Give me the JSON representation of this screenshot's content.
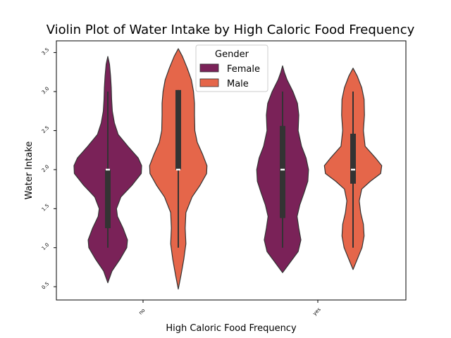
{
  "chart_data": {
    "type": "violin",
    "title": "Violin Plot of Water Intake by High Caloric Food Frequency",
    "xlabel": "High Caloric Food Frequency",
    "ylabel": "Water Intake",
    "categories": [
      "no",
      "yes"
    ],
    "ylim": [
      0.33,
      3.65
    ],
    "yticks": [
      "0.5",
      "1.0",
      "1.5",
      "2.0",
      "2.5",
      "3.0",
      "3.5"
    ],
    "legend": {
      "title": "Gender",
      "position": "top-center",
      "entries": [
        "Female",
        "Male"
      ]
    },
    "series": [
      {
        "name": "Female",
        "color": "#7a2258",
        "violins": [
          {
            "category": "no",
            "min": 1.0,
            "q1": 1.25,
            "median": 2.0,
            "q3": 2.0,
            "max": 3.0,
            "kde_min": 0.55,
            "kde_max": 3.45,
            "profile": [
              [
                0.55,
                0.0
              ],
              [
                0.7,
                0.12
              ],
              [
                0.85,
                0.35
              ],
              [
                1.0,
                0.55
              ],
              [
                1.1,
                0.57
              ],
              [
                1.25,
                0.44
              ],
              [
                1.4,
                0.28
              ],
              [
                1.5,
                0.25
              ],
              [
                1.65,
                0.38
              ],
              [
                1.8,
                0.7
              ],
              [
                1.95,
                0.97
              ],
              [
                2.05,
                0.98
              ],
              [
                2.15,
                0.88
              ],
              [
                2.3,
                0.58
              ],
              [
                2.45,
                0.3
              ],
              [
                2.6,
                0.19
              ],
              [
                2.75,
                0.13
              ],
              [
                2.9,
                0.11
              ],
              [
                3.05,
                0.1
              ],
              [
                3.2,
                0.08
              ],
              [
                3.35,
                0.05
              ],
              [
                3.45,
                0.0
              ]
            ]
          },
          {
            "category": "yes",
            "min": 1.0,
            "q1": 1.38,
            "median": 2.0,
            "q3": 2.56,
            "max": 3.0,
            "kde_min": 0.68,
            "kde_max": 3.33,
            "profile": [
              [
                0.68,
                0.0
              ],
              [
                0.8,
                0.2
              ],
              [
                0.95,
                0.45
              ],
              [
                1.1,
                0.53
              ],
              [
                1.25,
                0.47
              ],
              [
                1.4,
                0.42
              ],
              [
                1.55,
                0.5
              ],
              [
                1.7,
                0.62
              ],
              [
                1.85,
                0.73
              ],
              [
                2.0,
                0.75
              ],
              [
                2.15,
                0.68
              ],
              [
                2.3,
                0.55
              ],
              [
                2.5,
                0.45
              ],
              [
                2.7,
                0.47
              ],
              [
                2.85,
                0.43
              ],
              [
                3.0,
                0.3
              ],
              [
                3.15,
                0.13
              ],
              [
                3.25,
                0.05
              ],
              [
                3.33,
                0.0
              ]
            ]
          }
        ]
      },
      {
        "name": "Male",
        "color": "#e5664a",
        "violins": [
          {
            "category": "no",
            "min": 1.0,
            "q1": 2.0,
            "median": 2.0,
            "q3": 3.02,
            "max": 3.02,
            "kde_min": 0.47,
            "kde_max": 3.55,
            "profile": [
              [
                0.47,
                0.0
              ],
              [
                0.65,
                0.08
              ],
              [
                0.85,
                0.16
              ],
              [
                1.05,
                0.22
              ],
              [
                1.25,
                0.2
              ],
              [
                1.45,
                0.22
              ],
              [
                1.65,
                0.4
              ],
              [
                1.8,
                0.63
              ],
              [
                1.95,
                0.82
              ],
              [
                2.05,
                0.83
              ],
              [
                2.2,
                0.7
              ],
              [
                2.35,
                0.55
              ],
              [
                2.5,
                0.48
              ],
              [
                2.7,
                0.47
              ],
              [
                2.85,
                0.47
              ],
              [
                3.0,
                0.44
              ],
              [
                3.15,
                0.38
              ],
              [
                3.3,
                0.26
              ],
              [
                3.45,
                0.12
              ],
              [
                3.55,
                0.0
              ]
            ]
          },
          {
            "category": "yes",
            "min": 1.0,
            "q1": 1.82,
            "median": 2.0,
            "q3": 2.46,
            "max": 3.0,
            "kde_min": 0.72,
            "kde_max": 3.3,
            "profile": [
              [
                0.72,
                0.0
              ],
              [
                0.85,
                0.12
              ],
              [
                1.0,
                0.26
              ],
              [
                1.15,
                0.32
              ],
              [
                1.3,
                0.3
              ],
              [
                1.45,
                0.22
              ],
              [
                1.6,
                0.18
              ],
              [
                1.75,
                0.25
              ],
              [
                1.85,
                0.5
              ],
              [
                1.95,
                0.8
              ],
              [
                2.05,
                0.83
              ],
              [
                2.15,
                0.65
              ],
              [
                2.3,
                0.35
              ],
              [
                2.5,
                0.3
              ],
              [
                2.7,
                0.33
              ],
              [
                2.9,
                0.32
              ],
              [
                3.05,
                0.25
              ],
              [
                3.2,
                0.12
              ],
              [
                3.3,
                0.0
              ]
            ]
          }
        ]
      }
    ]
  }
}
